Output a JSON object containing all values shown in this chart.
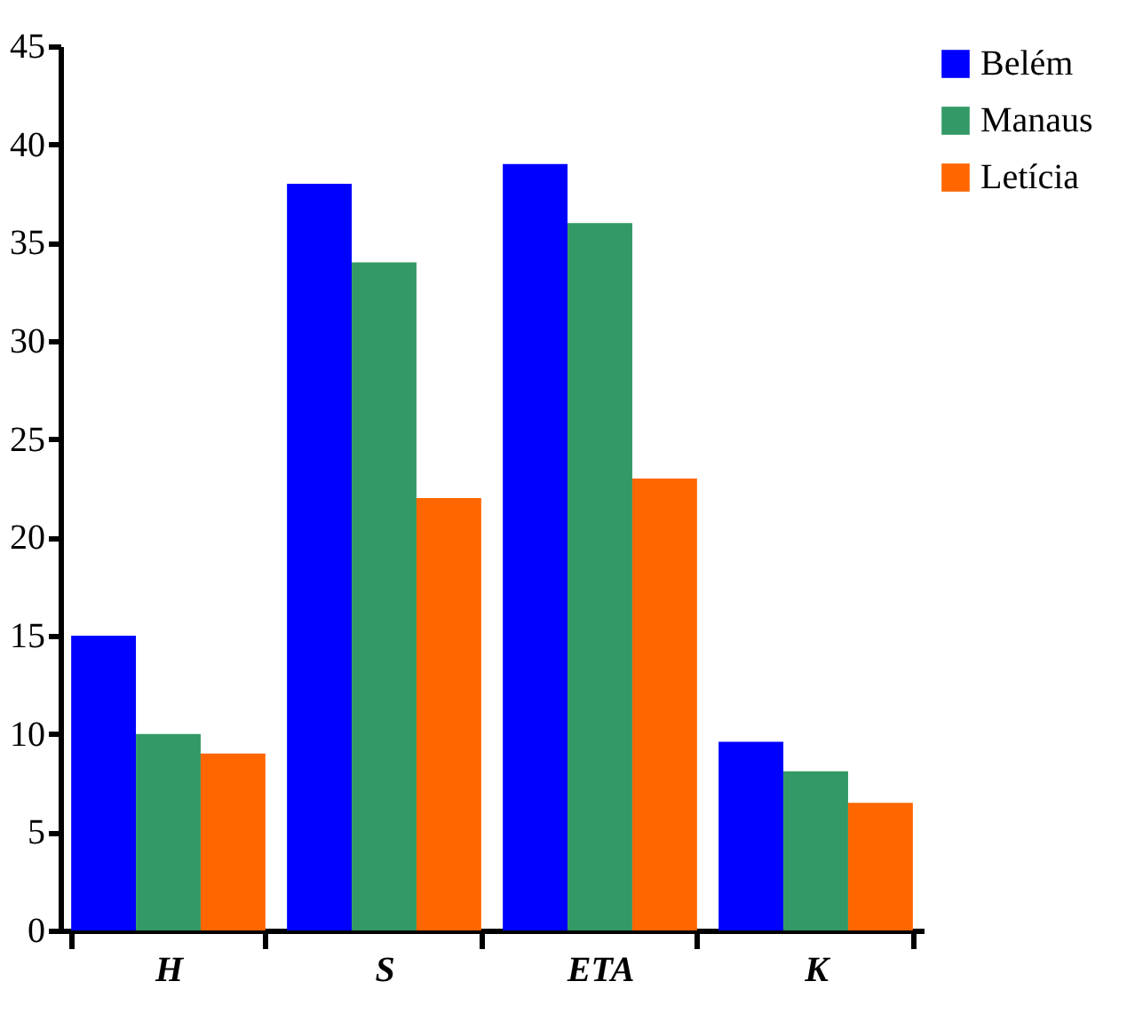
{
  "chart_data": {
    "type": "bar",
    "categories": [
      "H",
      "S",
      "ETA",
      "K"
    ],
    "series": [
      {
        "name": "Belém",
        "color": "#0000ff",
        "values": [
          15,
          38,
          39,
          9.6
        ]
      },
      {
        "name": "Manaus",
        "color": "#339966",
        "values": [
          10,
          34,
          36,
          8.1
        ]
      },
      {
        "name": "Letícia",
        "color": "#ff6600",
        "values": [
          9,
          22,
          23,
          6.5
        ]
      }
    ],
    "ylim": [
      0,
      45
    ],
    "yticks": [
      0,
      5,
      10,
      15,
      20,
      25,
      30,
      35,
      40,
      45
    ],
    "grid": false,
    "legend": "right"
  }
}
